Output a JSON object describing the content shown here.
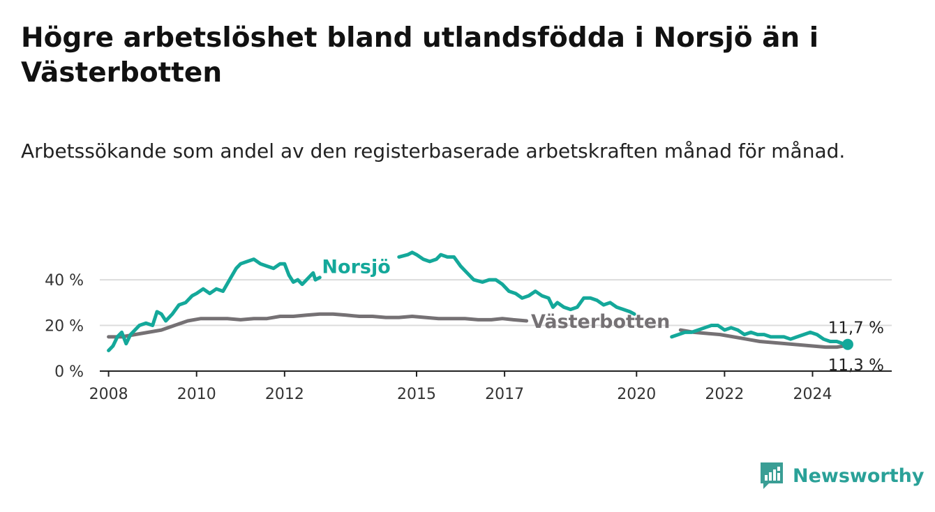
{
  "title": "Högre arbetslöshet bland utlandsfödda i Norsjö än i Västerbotten",
  "subtitle": "Arbetssökande som andel av den registerbaserade arbetskraften månad för månad.",
  "brand": {
    "name": "Newsworthy",
    "icon": "newsworthy-logo-icon",
    "color": "#3a9e95"
  },
  "chart_data": {
    "type": "line",
    "ylim": [
      0,
      55
    ],
    "xlim": [
      2007.8,
      2025.8
    ],
    "grid": true,
    "y_ticks": [
      {
        "value": 0,
        "label": "0 %"
      },
      {
        "value": 20,
        "label": "20 %"
      },
      {
        "value": 40,
        "label": "40 %"
      }
    ],
    "x_ticks": [
      {
        "value": 2008,
        "label": "2008"
      },
      {
        "value": 2010,
        "label": "2010"
      },
      {
        "value": 2012,
        "label": "2012"
      },
      {
        "value": 2015,
        "label": "2015"
      },
      {
        "value": 2017,
        "label": "2017"
      },
      {
        "value": 2020,
        "label": "2020"
      },
      {
        "value": 2022,
        "label": "2022"
      },
      {
        "value": 2024,
        "label": "2024"
      }
    ],
    "series": [
      {
        "name": "Norsjö",
        "color": "#14a89a",
        "end_label": "11,7 %",
        "points": [
          [
            2008.0,
            9
          ],
          [
            2008.1,
            11
          ],
          [
            2008.2,
            15
          ],
          [
            2008.3,
            17
          ],
          [
            2008.4,
            12
          ],
          [
            2008.5,
            16
          ],
          [
            2008.7,
            20
          ],
          [
            2008.85,
            21
          ],
          [
            2009.0,
            20
          ],
          [
            2009.1,
            26
          ],
          [
            2009.2,
            25
          ],
          [
            2009.3,
            22
          ],
          [
            2009.45,
            25
          ],
          [
            2009.6,
            29
          ],
          [
            2009.75,
            30
          ],
          [
            2009.9,
            33
          ],
          [
            2010.0,
            34
          ],
          [
            2010.15,
            36
          ],
          [
            2010.3,
            34
          ],
          [
            2010.45,
            36
          ],
          [
            2010.6,
            35
          ],
          [
            2010.75,
            40
          ],
          [
            2010.9,
            45
          ],
          [
            2011.0,
            47
          ],
          [
            2011.15,
            48
          ],
          [
            2011.3,
            49
          ],
          [
            2011.45,
            47
          ],
          [
            2011.6,
            46
          ],
          [
            2011.75,
            45
          ],
          [
            2011.9,
            47
          ],
          [
            2012.0,
            47
          ],
          [
            2012.1,
            42
          ],
          [
            2012.2,
            39
          ],
          [
            2012.3,
            40
          ],
          [
            2012.4,
            38
          ],
          [
            2012.55,
            41
          ],
          [
            2012.65,
            43
          ],
          [
            2012.7,
            40
          ],
          [
            2012.8,
            41
          ]
        ],
        "points_b": [
          [
            2014.6,
            50
          ],
          [
            2014.8,
            51
          ],
          [
            2014.9,
            52
          ],
          [
            2015.0,
            51
          ],
          [
            2015.15,
            49
          ],
          [
            2015.3,
            48
          ],
          [
            2015.45,
            49
          ],
          [
            2015.55,
            51
          ],
          [
            2015.7,
            50
          ],
          [
            2015.85,
            50
          ],
          [
            2016.0,
            46
          ],
          [
            2016.15,
            43
          ],
          [
            2016.3,
            40
          ],
          [
            2016.5,
            39
          ],
          [
            2016.65,
            40
          ],
          [
            2016.8,
            40
          ],
          [
            2016.95,
            38
          ],
          [
            2017.1,
            35
          ],
          [
            2017.25,
            34
          ],
          [
            2017.4,
            32
          ],
          [
            2017.55,
            33
          ],
          [
            2017.7,
            35
          ],
          [
            2017.85,
            33
          ],
          [
            2018.0,
            32
          ],
          [
            2018.1,
            28
          ],
          [
            2018.2,
            30
          ],
          [
            2018.35,
            28
          ],
          [
            2018.5,
            27
          ],
          [
            2018.65,
            28
          ],
          [
            2018.8,
            32
          ],
          [
            2018.95,
            32
          ],
          [
            2019.1,
            31
          ],
          [
            2019.25,
            29
          ],
          [
            2019.4,
            30
          ],
          [
            2019.55,
            28
          ],
          [
            2019.7,
            27
          ],
          [
            2019.85,
            26
          ],
          [
            2019.95,
            25
          ]
        ],
        "points_c": [
          [
            2020.8,
            15
          ],
          [
            2020.95,
            16
          ],
          [
            2021.1,
            17
          ],
          [
            2021.25,
            17
          ],
          [
            2021.4,
            18
          ],
          [
            2021.55,
            19
          ],
          [
            2021.7,
            20
          ],
          [
            2021.85,
            20
          ],
          [
            2022.0,
            18
          ],
          [
            2022.15,
            19
          ],
          [
            2022.3,
            18
          ],
          [
            2022.45,
            16
          ],
          [
            2022.6,
            17
          ],
          [
            2022.75,
            16
          ],
          [
            2022.9,
            16
          ],
          [
            2023.05,
            15
          ],
          [
            2023.2,
            15
          ],
          [
            2023.35,
            15
          ],
          [
            2023.5,
            14
          ],
          [
            2023.65,
            15
          ],
          [
            2023.8,
            16
          ],
          [
            2023.95,
            17
          ],
          [
            2024.1,
            16
          ],
          [
            2024.25,
            14
          ],
          [
            2024.4,
            13
          ],
          [
            2024.55,
            13
          ],
          [
            2024.7,
            12
          ],
          [
            2024.8,
            11.7
          ]
        ]
      },
      {
        "name": "Västerbotten",
        "color": "#757174",
        "end_label": "11,3 %",
        "points": [
          [
            2008.0,
            15
          ],
          [
            2008.3,
            15
          ],
          [
            2008.6,
            16
          ],
          [
            2008.9,
            17
          ],
          [
            2009.2,
            18
          ],
          [
            2009.5,
            20
          ],
          [
            2009.8,
            22
          ],
          [
            2010.1,
            23
          ],
          [
            2010.4,
            23
          ],
          [
            2010.7,
            23
          ],
          [
            2011.0,
            22.5
          ],
          [
            2011.3,
            23
          ],
          [
            2011.6,
            23
          ],
          [
            2011.9,
            24
          ],
          [
            2012.2,
            24
          ],
          [
            2012.5,
            24.5
          ],
          [
            2012.8,
            25
          ],
          [
            2013.1,
            25
          ],
          [
            2013.4,
            24.5
          ],
          [
            2013.7,
            24
          ],
          [
            2014.0,
            24
          ],
          [
            2014.3,
            23.5
          ],
          [
            2014.6,
            23.5
          ],
          [
            2014.9,
            24
          ],
          [
            2015.2,
            23.5
          ],
          [
            2015.5,
            23
          ],
          [
            2015.8,
            23
          ],
          [
            2016.1,
            23
          ],
          [
            2016.4,
            22.5
          ],
          [
            2016.7,
            22.5
          ],
          [
            2016.95,
            23
          ],
          [
            2017.2,
            22.5
          ],
          [
            2017.5,
            22
          ]
        ],
        "points_b": [
          [
            2021.0,
            18
          ],
          [
            2021.3,
            17
          ],
          [
            2021.6,
            16.5
          ],
          [
            2021.9,
            16
          ],
          [
            2022.2,
            15
          ],
          [
            2022.5,
            14
          ],
          [
            2022.8,
            13
          ],
          [
            2023.1,
            12.5
          ],
          [
            2023.4,
            12
          ],
          [
            2023.7,
            11.5
          ],
          [
            2024.0,
            11
          ],
          [
            2024.3,
            10.5
          ],
          [
            2024.55,
            10.5
          ],
          [
            2024.8,
            11.3
          ]
        ]
      }
    ]
  }
}
